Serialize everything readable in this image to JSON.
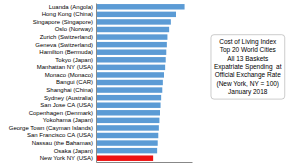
{
  "chart_data": {
    "type": "bar",
    "orientation": "horizontal",
    "categories": [
      "New York NY (USA)",
      "Osaka (Japan)",
      "Nassau (the Bahamas)",
      "San Francisco CA (USA)",
      "George Town (Cayman Islands)",
      "Yokohama (Japan)",
      "Copenhagen (Denmark)",
      "San Jose CA (USA)",
      "Sydney (Australia)",
      "Shanghai (China)",
      "Bangui (CAR)",
      "Monaco (Monaco)",
      "Manhattan NY (USA)",
      "Tokyo (Japan)",
      "Hamilton (Bermuda)",
      "Geneva (Switzerland)",
      "Zurich (Switzerland)",
      "Oslo (Norway)",
      "Singapore (Singapore)",
      "Hong Kong (China)",
      "Luanda (Angola)"
    ],
    "values": [
      100,
      107,
      108,
      109,
      110,
      111,
      112,
      113,
      114,
      116,
      117,
      119,
      121,
      122,
      123,
      124,
      125,
      128,
      131,
      140,
      155
    ],
    "colors": [
      "#EE1111",
      "#5B9BD5",
      "#5B9BD5",
      "#5B9BD5",
      "#5B9BD5",
      "#5B9BD5",
      "#5B9BD5",
      "#5B9BD5",
      "#5B9BD5",
      "#5B9BD5",
      "#5B9BD5",
      "#5B9BD5",
      "#5B9BD5",
      "#5B9BD5",
      "#5B9BD5",
      "#5B9BD5",
      "#5B9BD5",
      "#5B9BD5",
      "#5B9BD5",
      "#5B9BD5",
      "#5B9BD5"
    ],
    "xlim": [
      0,
      168
    ],
    "xticks": [],
    "grid": false,
    "tick_labels": "y",
    "annotation": [
      "Cost of Living Index",
      "Top 20 World Cities",
      "All 13 Baskets",
      "Expatriate Spending  at",
      "Official Exchange Rate",
      "(New York, NY = 100)",
      "January 2018"
    ]
  }
}
